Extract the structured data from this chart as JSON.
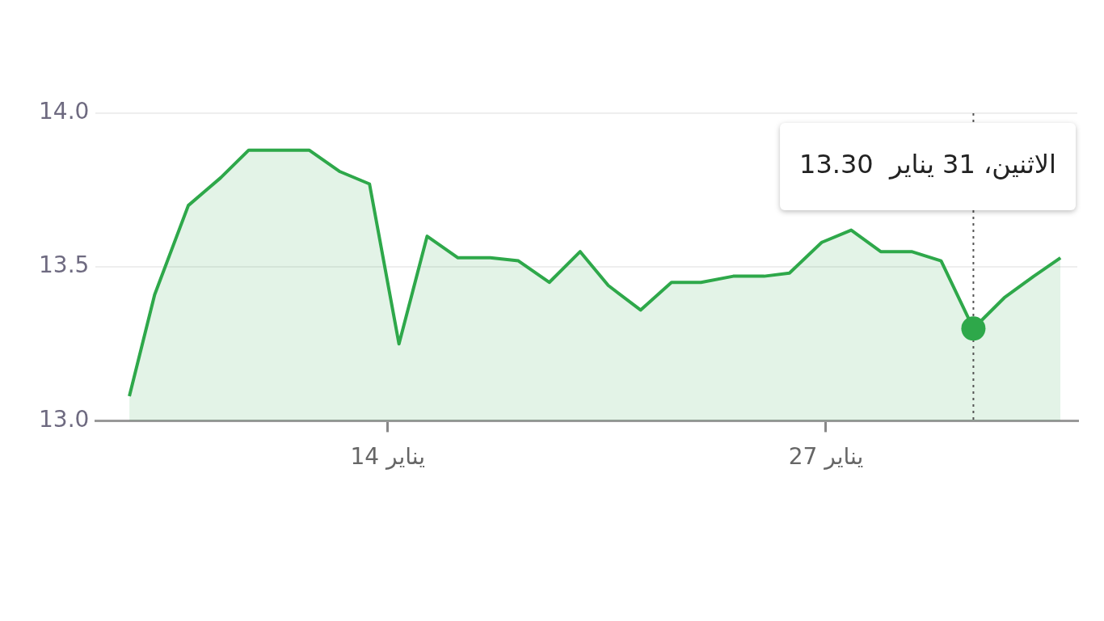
{
  "chart_data": {
    "type": "area",
    "x": [
      "--01-06T08:00",
      "--01-07T02:00",
      "--01-08T02:00",
      "--01-09T01:00",
      "--01-09T21:00",
      "--01-10T18:00",
      "--01-11T16:00",
      "--01-12T14:00",
      "--01-13T11:00",
      "--01-14T08:00",
      "--01-15T04:00",
      "--01-16T02:00",
      "--01-17T01:00",
      "--01-17T21:00",
      "--01-18T19:00",
      "--01-19T17:00",
      "--01-20T13:00",
      "--01-21T12:00",
      "--01-22T10:00",
      "--01-23T07:00",
      "--01-24T06:00",
      "--01-25T04:00",
      "--01-25T22:00",
      "--01-26T21:00",
      "--01-27T18:00",
      "--01-28T15:00",
      "--01-29T13:00",
      "--01-30T10:00",
      "--01-31T09:00",
      "--02-01T07:00",
      "--02-02T04:00",
      "--02-02T23:00"
    ],
    "series": [
      {
        "color": "#2ea84a",
        "values": [
          13.08,
          13.41,
          13.7,
          13.79,
          13.88,
          13.88,
          13.88,
          13.81,
          13.77,
          13.25,
          13.6,
          13.53,
          13.53,
          13.52,
          13.45,
          13.55,
          13.44,
          13.36,
          13.45,
          13.45,
          13.47,
          13.47,
          13.48,
          13.58,
          13.62,
          13.55,
          13.55,
          13.52,
          13.3,
          13.4,
          13.47,
          13.53
        ]
      }
    ],
    "xlim": [
      "--01-05T08:00",
      "--02-03T11:00"
    ],
    "xticks": [
      {
        "value": "--01-14",
        "label": "14 يناير"
      },
      {
        "value": "--01-27",
        "label": "27 يناير"
      }
    ],
    "ylim": [
      13.0,
      14.0
    ],
    "yticks": [
      {
        "value": 13.0,
        "label": "13.0"
      },
      {
        "value": 13.5,
        "label": "13.5"
      },
      {
        "value": 14.0,
        "label": "14.0"
      }
    ],
    "grid": "y",
    "legend": false,
    "marker": "none",
    "ref_lines": [
      {
        "axis": "x",
        "value": "--01-31T09:00",
        "line_style": "dotted",
        "color": "#555555"
      }
    ],
    "annotations": [
      "الاثنين، 31 يناير  13.30"
    ]
  }
}
